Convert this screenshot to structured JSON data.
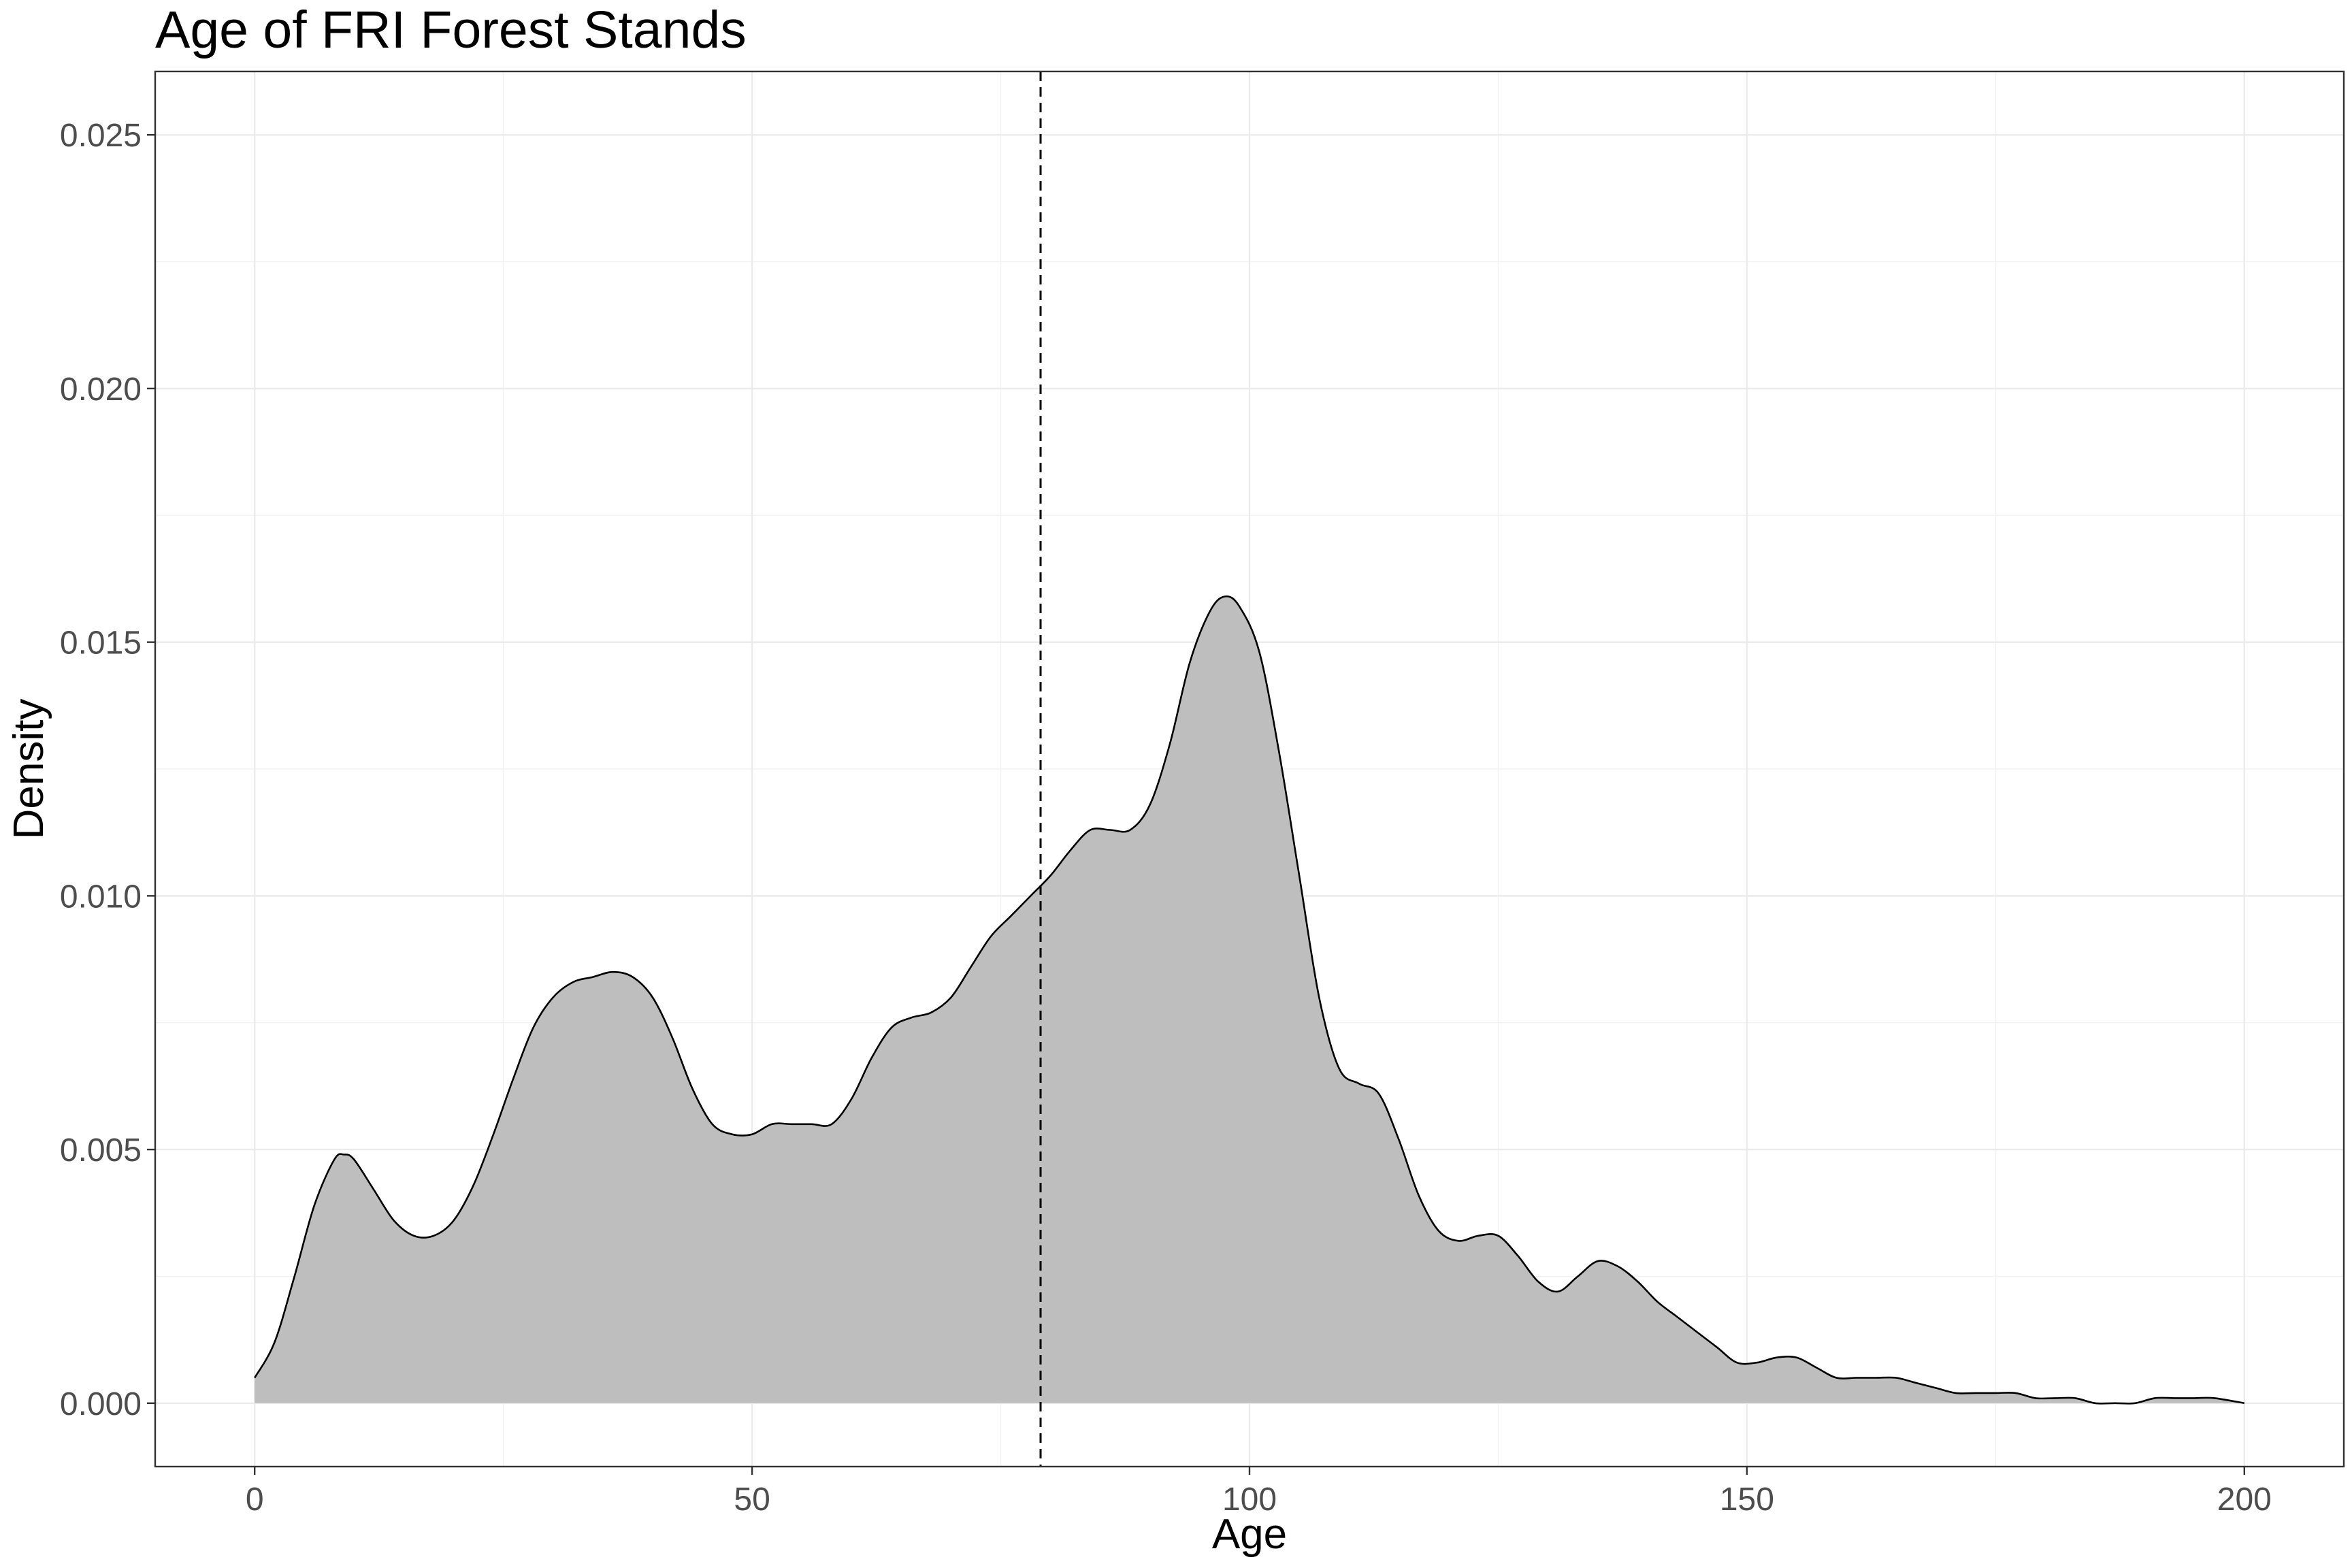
{
  "chart_data": {
    "type": "area",
    "title": "Age of FRI Forest Stands",
    "xlabel": "Age",
    "ylabel": "Density",
    "xlim": [
      -10,
      210
    ],
    "ylim": [
      -0.00125,
      0.02625
    ],
    "x_ticks": [
      0,
      50,
      100,
      150,
      200
    ],
    "x_tick_labels": [
      "0",
      "50",
      "100",
      "150",
      "200"
    ],
    "y_ticks": [
      0,
      0.005,
      0.01,
      0.015,
      0.02,
      0.025
    ],
    "y_tick_labels": [
      "0.000",
      "0.005",
      "0.010",
      "0.015",
      "0.020",
      "0.025"
    ],
    "grid": true,
    "legend": "none",
    "vline": {
      "x": 79,
      "style": "dashed"
    },
    "fill_color": "#bebebe",
    "line_color": "#000000",
    "series": [
      {
        "x": [
          0,
          2,
          4,
          6,
          8,
          9,
          10,
          12,
          14,
          16,
          18,
          20,
          22,
          24,
          26,
          28,
          30,
          32,
          34,
          36,
          38,
          40,
          42,
          44,
          46,
          48,
          50,
          52,
          54,
          56,
          58,
          60,
          62,
          64,
          66,
          68,
          70,
          72,
          74,
          76,
          78,
          80,
          82,
          84,
          86,
          88,
          90,
          92,
          94,
          96,
          97.5,
          99,
          101,
          103,
          105,
          107,
          109,
          111,
          113,
          115,
          117,
          119,
          121,
          123,
          125,
          127,
          129,
          131,
          133,
          135,
          137,
          139,
          141,
          143,
          145,
          147,
          149,
          151,
          153,
          155,
          157,
          159,
          161,
          163,
          165,
          167,
          169,
          171,
          173,
          175,
          177,
          179,
          181,
          183,
          185,
          187,
          189,
          191,
          193,
          195,
          197,
          200
        ],
        "y": [
          0.0005,
          0.0012,
          0.0025,
          0.0039,
          0.0048,
          0.0049,
          0.0048,
          0.0042,
          0.0036,
          0.0033,
          0.0033,
          0.0036,
          0.0043,
          0.0053,
          0.0064,
          0.0074,
          0.008,
          0.0083,
          0.0084,
          0.0085,
          0.0084,
          0.008,
          0.0072,
          0.0062,
          0.0055,
          0.0053,
          0.0053,
          0.0055,
          0.0055,
          0.0055,
          0.0055,
          0.006,
          0.0068,
          0.0074,
          0.0076,
          0.0077,
          0.008,
          0.0086,
          0.0092,
          0.0096,
          0.01,
          0.0104,
          0.0109,
          0.0113,
          0.0113,
          0.0113,
          0.0118,
          0.013,
          0.0146,
          0.0156,
          0.0159,
          0.0157,
          0.0148,
          0.0128,
          0.0104,
          0.008,
          0.0066,
          0.0063,
          0.0061,
          0.0052,
          0.0041,
          0.0034,
          0.0032,
          0.0033,
          0.0033,
          0.0029,
          0.0024,
          0.0022,
          0.0025,
          0.0028,
          0.0027,
          0.0024,
          0.002,
          0.0017,
          0.0014,
          0.0011,
          0.0008,
          0.0008,
          0.0009,
          0.0009,
          0.0007,
          0.0005,
          0.0005,
          0.0005,
          0.0005,
          0.0004,
          0.0003,
          0.0002,
          0.0002,
          0.0002,
          0.0002,
          0.0001,
          0.0001,
          0.0001,
          0.0,
          0.0,
          0.0,
          0.0001,
          0.0001,
          0.0001,
          0.0001,
          0.0
        ]
      }
    ]
  }
}
